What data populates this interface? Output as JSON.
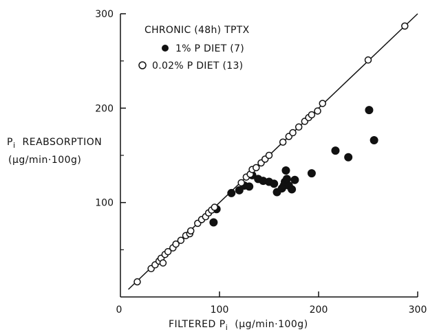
{
  "chart_data": {
    "type": "scatter",
    "legend_title": "CHRONIC (48h) TPTX",
    "legend_placement": "top-left",
    "xlabel_main": "FILTERED P",
    "xlabel_sub": "i",
    "xlabel_units": "(μg/min·100g)",
    "ylabel_main": "P",
    "ylabel_sub": "i",
    "ylabel_word": "REABSORPTION",
    "ylabel_units": "(μg/min·100g)",
    "xlim": [
      0,
      300
    ],
    "ylim": [
      0,
      300
    ],
    "x_ticks": [
      0,
      100,
      200,
      300
    ],
    "y_ticks": [
      100,
      200,
      300
    ],
    "x_tick_labels": [
      "0",
      "100",
      "200",
      "300"
    ],
    "y_tick_labels": [
      "100",
      "200",
      "300"
    ],
    "grid": false,
    "identity_line": true,
    "series": [
      {
        "name": "1% P DIET (7)",
        "marker": "filled-circle",
        "color": "#111111",
        "points": [
          [
            94,
            79
          ],
          [
            97,
            93
          ],
          [
            112,
            110
          ],
          [
            120,
            113
          ],
          [
            125,
            118
          ],
          [
            130,
            117
          ],
          [
            133,
            129
          ],
          [
            139,
            125
          ],
          [
            144,
            123
          ],
          [
            150,
            122
          ],
          [
            155,
            120
          ],
          [
            158,
            111
          ],
          [
            163,
            115
          ],
          [
            165,
            118
          ],
          [
            166,
            122
          ],
          [
            168,
            125
          ],
          [
            167,
            134
          ],
          [
            170,
            118
          ],
          [
            173,
            114
          ],
          [
            176,
            124
          ],
          [
            193,
            131
          ],
          [
            217,
            155
          ],
          [
            230,
            148
          ],
          [
            251,
            198
          ],
          [
            256,
            166
          ]
        ]
      },
      {
        "name": "0.02% P DIET (13)",
        "marker": "open-circle",
        "color": "#111111",
        "points": [
          [
            17,
            16
          ],
          [
            31,
            30
          ],
          [
            35,
            34
          ],
          [
            39,
            38
          ],
          [
            41,
            41
          ],
          [
            43,
            36
          ],
          [
            45,
            45
          ],
          [
            48,
            48
          ],
          [
            53,
            52
          ],
          [
            56,
            56
          ],
          [
            61,
            60
          ],
          [
            66,
            65
          ],
          [
            70,
            67
          ],
          [
            71,
            70
          ],
          [
            78,
            78
          ],
          [
            82,
            82
          ],
          [
            86,
            85
          ],
          [
            89,
            89
          ],
          [
            92,
            92
          ],
          [
            95,
            95
          ],
          [
            122,
            121
          ],
          [
            127,
            127
          ],
          [
            131,
            130
          ],
          [
            133,
            135
          ],
          [
            137,
            137
          ],
          [
            142,
            142
          ],
          [
            146,
            146
          ],
          [
            150,
            150
          ],
          [
            164,
            164
          ],
          [
            170,
            170
          ],
          [
            174,
            174
          ],
          [
            180,
            180
          ],
          [
            186,
            186
          ],
          [
            190,
            190
          ],
          [
            193,
            193
          ],
          [
            199,
            197
          ],
          [
            204,
            205
          ],
          [
            250,
            251
          ],
          [
            287,
            287
          ]
        ]
      }
    ]
  }
}
